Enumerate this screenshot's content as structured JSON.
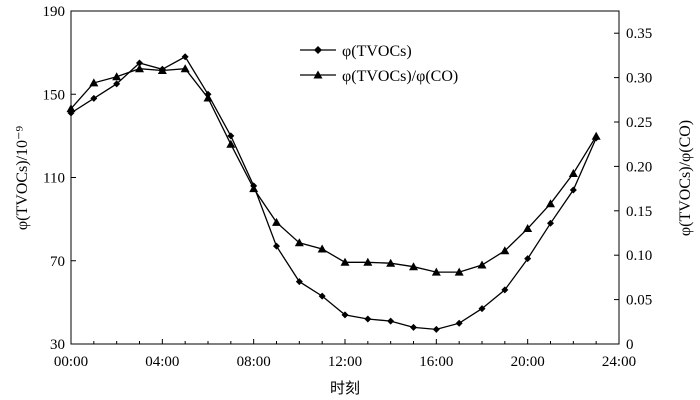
{
  "chart_data": {
    "type": "line",
    "x_ticks": [
      "00:00",
      "04:00",
      "08:00",
      "12:00",
      "16:00",
      "20:00",
      "24:00"
    ],
    "xlim": [
      0,
      24
    ],
    "xlabel": "时刻",
    "ylabel_left": "φ(TVOCs)/10⁻⁹",
    "ylabel_right": "φ(TVOCs)/φ(CO)",
    "ylim_left": [
      30,
      190
    ],
    "yticks_left": [
      "30",
      "70",
      "110",
      "150",
      "190"
    ],
    "ylim_right": [
      0,
      0.375
    ],
    "yticks_right": [
      "0",
      "0.05",
      "0.10",
      "0.15",
      "0.20",
      "0.25",
      "0.30",
      "0.35"
    ],
    "legend_position": "top-center",
    "series": [
      {
        "name": "φ(TVOCs)",
        "axis": "left",
        "marker": "diamond",
        "x": [
          0,
          1,
          2,
          3,
          4,
          5,
          6,
          7,
          8,
          9,
          10,
          11,
          12,
          13,
          14,
          15,
          16,
          17,
          18,
          19,
          20,
          21,
          22,
          23
        ],
        "values": [
          141,
          148,
          155,
          165,
          162,
          168,
          150,
          130,
          106,
          77,
          60,
          53,
          44,
          42,
          41,
          38,
          37,
          40,
          47,
          56,
          71,
          88,
          104,
          129
        ]
      },
      {
        "name": "φ(TVOCs)/φ(CO)",
        "axis": "right",
        "marker": "triangle",
        "x": [
          0,
          1,
          2,
          3,
          4,
          5,
          6,
          7,
          8,
          9,
          10,
          11,
          12,
          13,
          14,
          15,
          16,
          17,
          18,
          19,
          20,
          21,
          22,
          23
        ],
        "values": [
          0.265,
          0.294,
          0.301,
          0.31,
          0.308,
          0.31,
          0.277,
          0.225,
          0.175,
          0.137,
          0.114,
          0.107,
          0.092,
          0.092,
          0.091,
          0.087,
          0.081,
          0.081,
          0.089,
          0.105,
          0.13,
          0.158,
          0.192,
          0.234
        ]
      }
    ]
  }
}
